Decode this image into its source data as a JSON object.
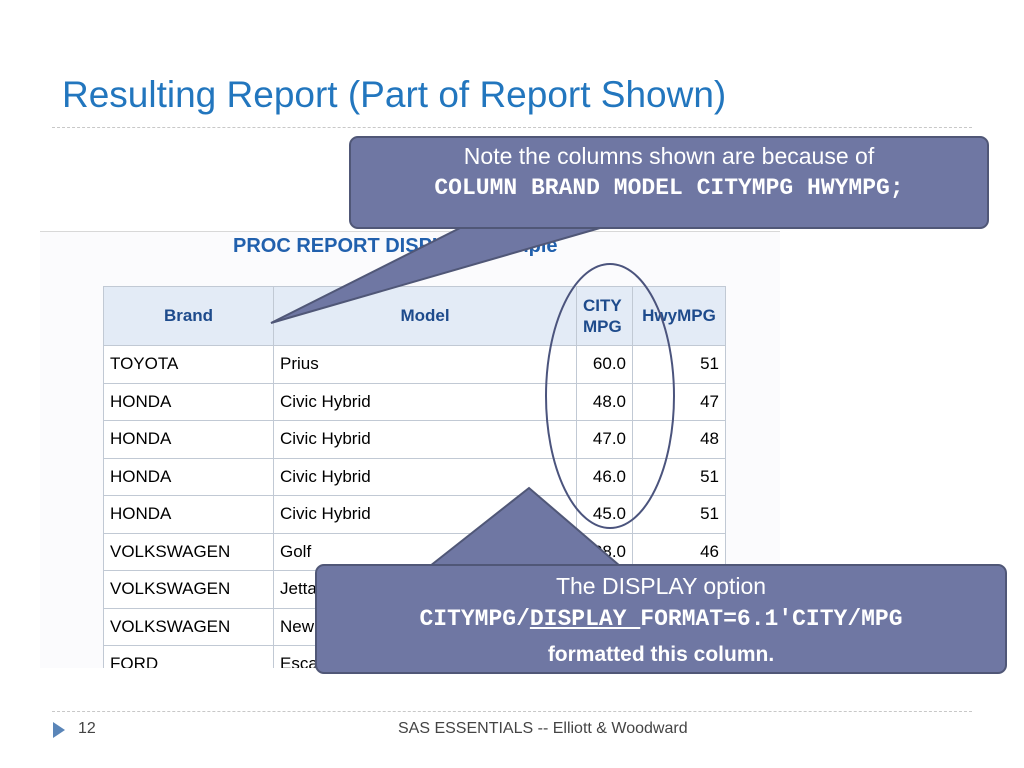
{
  "slide": {
    "title": "Resulting Report (Part of Report Shown)",
    "page_number": "12",
    "footer": "SAS ESSENTIALS -- Elliott & Woodward"
  },
  "report": {
    "title": "PROC REPORT DISPLAY Example",
    "columns": {
      "brand": "Brand",
      "model": "Model",
      "city_line1": "CITY",
      "city_line2": "MPG",
      "hwy": "HwyMPG"
    },
    "rows": [
      {
        "brand": "TOYOTA",
        "model": "Prius",
        "city": "60.0",
        "hwy": "51"
      },
      {
        "brand": "HONDA",
        "model": "Civic Hybrid",
        "city": "48.0",
        "hwy": "47"
      },
      {
        "brand": "HONDA",
        "model": "Civic Hybrid",
        "city": "47.0",
        "hwy": "48"
      },
      {
        "brand": "HONDA",
        "model": "Civic Hybrid",
        "city": "46.0",
        "hwy": "51"
      },
      {
        "brand": "HONDA",
        "model": "Civic Hybrid",
        "city": "45.0",
        "hwy": "51"
      },
      {
        "brand": "VOLKSWAGEN",
        "model": "Golf",
        "city": "38.0",
        "hwy": "46"
      },
      {
        "brand": "VOLKSWAGEN",
        "model": "Jetta",
        "city": "",
        "hwy": ""
      },
      {
        "brand": "VOLKSWAGEN",
        "model": "New Beetle",
        "city": "",
        "hwy": ""
      },
      {
        "brand": "FORD",
        "model": "Escape",
        "city": "",
        "hwy": ""
      }
    ]
  },
  "callout_top": {
    "line1": "Note the columns shown are because of",
    "line2": "COLUMN BRAND MODEL CITYMPG HWYMPG;"
  },
  "callout_bottom": {
    "line1": "The DISPLAY option",
    "code_a": "CITYMPG/",
    "code_b": "DISPLAY ",
    "code_c": "FORMAT=6.1'CITY/MPG",
    "line3": "formatted this column."
  },
  "colors": {
    "title": "#2276be",
    "callout_fill": "#6f77a3",
    "report_title": "#2160ad",
    "header_bg": "#e3ebf6"
  }
}
